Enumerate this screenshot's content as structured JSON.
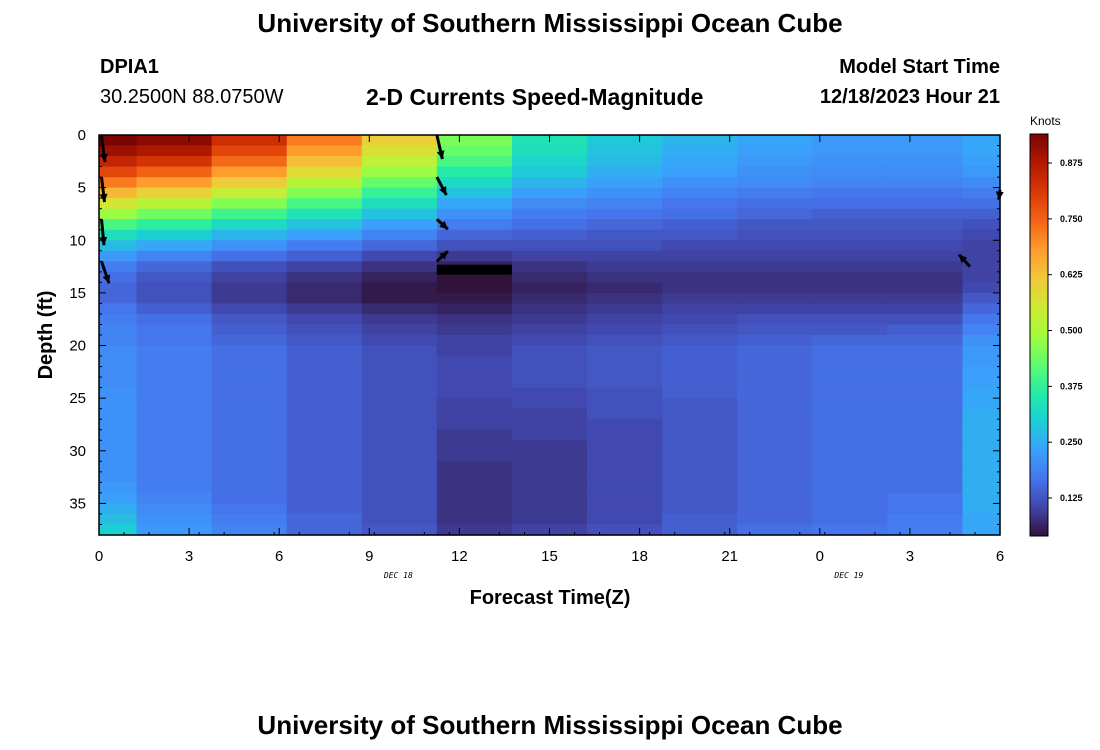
{
  "header": {
    "title": "University of Southern Mississippi Ocean Cube",
    "station": "DPIA1",
    "coordinates": "30.2500N  88.0750W",
    "subtitle": "2-D Currents Speed-Magnitude",
    "model_start_label": "Model Start Time",
    "model_start_value": "12/18/2023 Hour 21"
  },
  "footer": {
    "title": "University of Southern Mississippi Ocean Cube"
  },
  "chart_data": {
    "type": "heatmap",
    "title": "2-D Currents Speed-Magnitude",
    "xlabel": "Forecast Time(Z)",
    "ylabel": "Depth (ft)",
    "x_ticks": [
      "0",
      "3",
      "6",
      "9",
      "12",
      "15",
      "18",
      "21",
      "0",
      "3",
      "6"
    ],
    "x_range_hours": [
      0,
      36
    ],
    "date_labels": [
      {
        "text": "DEC 18",
        "at_hour": 13.5
      },
      {
        "text": "DEC 19",
        "at_hour": 31.5
      }
    ],
    "y_ticks": [
      0,
      5,
      10,
      15,
      20,
      25,
      30,
      35
    ],
    "y_range": [
      0,
      38
    ],
    "colorbar": {
      "unit": "Knots",
      "min": 0.04,
      "max": 0.94,
      "ticks": [
        "0.125",
        "0.250",
        "0.375",
        "0.500",
        "0.625",
        "0.750",
        "0.875"
      ],
      "tick_values": [
        0.125,
        0.25,
        0.375,
        0.5,
        0.625,
        0.75,
        0.875
      ],
      "colors": [
        "#30123b",
        "#4145ab",
        "#4675ed",
        "#39a2fc",
        "#1bcfd4",
        "#24eca6",
        "#61fc6c",
        "#a4fc3b",
        "#d1e834",
        "#f3c63a",
        "#fe9b2d",
        "#f36315",
        "#d93806",
        "#b11901",
        "#7a0402"
      ]
    },
    "time_columns_hours": [
      0,
      1.5,
      4.5,
      7.5,
      10.5,
      13.5,
      16.5,
      19.5,
      22.5,
      25.5,
      28.5,
      31.5,
      34.5
    ],
    "depth_rows_ft": [
      0,
      1,
      2,
      3,
      4,
      5,
      6,
      7,
      8,
      9,
      10,
      11,
      12,
      13,
      14,
      15,
      16,
      17,
      18,
      19,
      20,
      21,
      22,
      23,
      24,
      25,
      26,
      27,
      28,
      29,
      30,
      31,
      32,
      33,
      34,
      35,
      36,
      37
    ],
    "speed_knots": [
      [
        0.94,
        0.9,
        0.85,
        0.79,
        0.72,
        0.64,
        0.56,
        0.48,
        0.4,
        0.33,
        0.27,
        0.22,
        0.18,
        0.16,
        0.15,
        0.15,
        0.17,
        0.18,
        0.19,
        0.19,
        0.2,
        0.2,
        0.2,
        0.2,
        0.21,
        0.21,
        0.21,
        0.21,
        0.21,
        0.21,
        0.21,
        0.21,
        0.21,
        0.22,
        0.23,
        0.25,
        0.27,
        0.3
      ],
      [
        0.92,
        0.88,
        0.82,
        0.75,
        0.68,
        0.6,
        0.52,
        0.44,
        0.37,
        0.3,
        0.24,
        0.19,
        0.15,
        0.13,
        0.12,
        0.12,
        0.14,
        0.16,
        0.17,
        0.17,
        0.18,
        0.18,
        0.18,
        0.18,
        0.18,
        0.18,
        0.18,
        0.18,
        0.18,
        0.18,
        0.18,
        0.18,
        0.18,
        0.18,
        0.19,
        0.2,
        0.21,
        0.22
      ],
      [
        0.83,
        0.79,
        0.74,
        0.68,
        0.61,
        0.54,
        0.46,
        0.39,
        0.32,
        0.26,
        0.21,
        0.16,
        0.12,
        0.1,
        0.09,
        0.09,
        0.11,
        0.13,
        0.14,
        0.15,
        0.16,
        0.16,
        0.16,
        0.16,
        0.16,
        0.16,
        0.16,
        0.16,
        0.16,
        0.16,
        0.16,
        0.16,
        0.16,
        0.16,
        0.16,
        0.17,
        0.18,
        0.19
      ],
      [
        0.72,
        0.68,
        0.63,
        0.58,
        0.52,
        0.46,
        0.4,
        0.34,
        0.28,
        0.23,
        0.18,
        0.14,
        0.1,
        0.08,
        0.07,
        0.07,
        0.09,
        0.11,
        0.12,
        0.13,
        0.14,
        0.14,
        0.14,
        0.14,
        0.14,
        0.14,
        0.14,
        0.14,
        0.14,
        0.14,
        0.14,
        0.14,
        0.14,
        0.14,
        0.14,
        0.14,
        0.15,
        0.15
      ],
      [
        0.6,
        0.57,
        0.53,
        0.48,
        0.43,
        0.38,
        0.33,
        0.28,
        0.23,
        0.19,
        0.15,
        0.11,
        0.08,
        0.06,
        0.05,
        0.05,
        0.07,
        0.09,
        0.1,
        0.11,
        0.12,
        0.12,
        0.12,
        0.12,
        0.12,
        0.12,
        0.12,
        0.12,
        0.12,
        0.12,
        0.12,
        0.12,
        0.12,
        0.12,
        0.12,
        0.12,
        0.12,
        0.13
      ],
      [
        0.45,
        0.43,
        0.4,
        0.36,
        0.32,
        0.28,
        0.24,
        0.21,
        0.18,
        0.15,
        0.12,
        0.09,
        0.06,
        0.04,
        0.04,
        0.05,
        0.06,
        0.08,
        0.09,
        0.1,
        0.1,
        0.11,
        0.11,
        0.11,
        0.11,
        0.1,
        0.1,
        0.1,
        0.09,
        0.09,
        0.09,
        0.08,
        0.08,
        0.08,
        0.08,
        0.08,
        0.08,
        0.09
      ],
      [
        0.34,
        0.33,
        0.31,
        0.29,
        0.26,
        0.23,
        0.2,
        0.18,
        0.16,
        0.14,
        0.12,
        0.1,
        0.08,
        0.07,
        0.06,
        0.07,
        0.08,
        0.09,
        0.1,
        0.11,
        0.12,
        0.12,
        0.12,
        0.12,
        0.11,
        0.11,
        0.1,
        0.1,
        0.1,
        0.09,
        0.09,
        0.09,
        0.09,
        0.09,
        0.09,
        0.09,
        0.09,
        0.1
      ],
      [
        0.29,
        0.28,
        0.27,
        0.25,
        0.23,
        0.21,
        0.19,
        0.17,
        0.15,
        0.13,
        0.12,
        0.1,
        0.09,
        0.08,
        0.07,
        0.08,
        0.09,
        0.1,
        0.11,
        0.12,
        0.13,
        0.13,
        0.13,
        0.13,
        0.12,
        0.12,
        0.12,
        0.11,
        0.11,
        0.11,
        0.11,
        0.11,
        0.11,
        0.11,
        0.11,
        0.11,
        0.11,
        0.12
      ],
      [
        0.26,
        0.25,
        0.24,
        0.23,
        0.21,
        0.19,
        0.17,
        0.16,
        0.14,
        0.13,
        0.11,
        0.1,
        0.09,
        0.08,
        0.08,
        0.09,
        0.1,
        0.11,
        0.12,
        0.13,
        0.14,
        0.14,
        0.14,
        0.14,
        0.14,
        0.13,
        0.13,
        0.13,
        0.13,
        0.13,
        0.13,
        0.13,
        0.13,
        0.13,
        0.13,
        0.13,
        0.14,
        0.14
      ],
      [
        0.24,
        0.23,
        0.22,
        0.21,
        0.2,
        0.18,
        0.16,
        0.15,
        0.13,
        0.12,
        0.11,
        0.1,
        0.09,
        0.08,
        0.08,
        0.09,
        0.1,
        0.12,
        0.13,
        0.14,
        0.15,
        0.15,
        0.15,
        0.15,
        0.15,
        0.15,
        0.15,
        0.15,
        0.15,
        0.15,
        0.15,
        0.15,
        0.15,
        0.15,
        0.15,
        0.15,
        0.15,
        0.16
      ],
      [
        0.22,
        0.22,
        0.21,
        0.2,
        0.19,
        0.17,
        0.16,
        0.14,
        0.13,
        0.12,
        0.11,
        0.1,
        0.09,
        0.08,
        0.08,
        0.09,
        0.1,
        0.12,
        0.13,
        0.15,
        0.16,
        0.16,
        0.16,
        0.16,
        0.16,
        0.16,
        0.16,
        0.16,
        0.16,
        0.16,
        0.16,
        0.16,
        0.16,
        0.16,
        0.16,
        0.16,
        0.16,
        0.17
      ],
      [
        0.22,
        0.22,
        0.21,
        0.2,
        0.19,
        0.17,
        0.16,
        0.14,
        0.13,
        0.12,
        0.11,
        0.1,
        0.09,
        0.08,
        0.08,
        0.09,
        0.1,
        0.12,
        0.14,
        0.15,
        0.16,
        0.16,
        0.16,
        0.16,
        0.16,
        0.16,
        0.16,
        0.16,
        0.16,
        0.16,
        0.16,
        0.16,
        0.16,
        0.16,
        0.17,
        0.17,
        0.18,
        0.18
      ],
      [
        0.24,
        0.24,
        0.23,
        0.22,
        0.2,
        0.18,
        0.16,
        0.14,
        0.12,
        0.11,
        0.1,
        0.1,
        0.1,
        0.1,
        0.11,
        0.13,
        0.15,
        0.17,
        0.19,
        0.21,
        0.22,
        0.22,
        0.23,
        0.23,
        0.24,
        0.24,
        0.25,
        0.25,
        0.25,
        0.25,
        0.25,
        0.25,
        0.25,
        0.25,
        0.25,
        0.25,
        0.24,
        0.24
      ]
    ],
    "vectors": [
      {
        "hour": 0.1,
        "depth_ft": 0.1,
        "dx": 0.35,
        "dy": 2.6
      },
      {
        "hour": 0.1,
        "depth_ft": 4.0,
        "dx": 0.3,
        "dy": 2.5
      },
      {
        "hour": 0.1,
        "depth_ft": 8.0,
        "dx": 0.25,
        "dy": 2.6
      },
      {
        "hour": 0.1,
        "depth_ft": 12.0,
        "dx": 0.75,
        "dy": 2.2
      },
      {
        "hour": 13.5,
        "depth_ft": 0.0,
        "dx": 0.55,
        "dy": 2.4
      },
      {
        "hour": 13.5,
        "depth_ft": 4.0,
        "dx": 0.95,
        "dy": 1.8
      },
      {
        "hour": 13.5,
        "depth_ft": 8.0,
        "dx": 1.1,
        "dy": 1.0
      },
      {
        "hour": 13.5,
        "depth_ft": 12.0,
        "dx": 1.1,
        "dy": -1.0
      },
      {
        "hour": 34.8,
        "depth_ft": 12.5,
        "dx": -1.1,
        "dy": -1.2
      },
      {
        "hour": 36.0,
        "depth_ft": 5.2,
        "dx": -0.1,
        "dy": 1.0
      }
    ],
    "bar": {
      "hour_start": 13.5,
      "hour_end": 16.5,
      "depth_ft": 12.8
    }
  }
}
